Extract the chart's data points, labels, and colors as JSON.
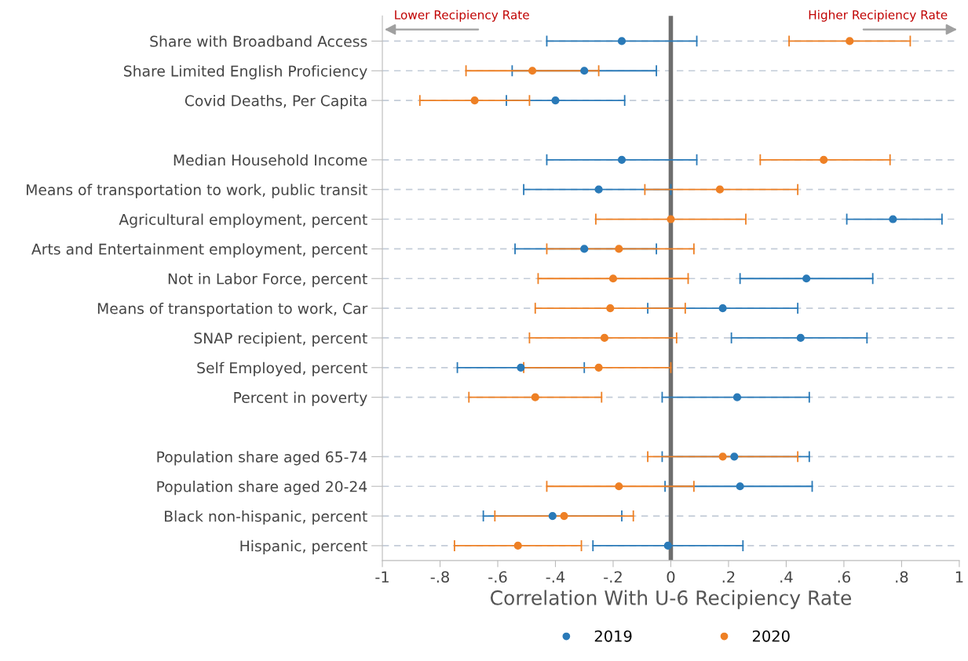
{
  "chart_data": {
    "type": "scatter",
    "orientation": "horizontal",
    "xlabel": "Correlation With U-6 Recipiency Rate",
    "categories": [
      "Share with Broadband Access",
      "Share Limited English Proficiency",
      "Covid Deaths, Per Capita",
      null,
      "Median Household Income",
      "Means of transportation to work, public transit",
      "Agricultural employment, percent",
      "Arts and Entertainment employment, percent",
      "Not in Labor Force, percent",
      "Means of transportation to work, Car",
      "SNAP recipient, percent",
      "Self Employed, percent",
      "Percent in poverty",
      null,
      "Population share aged 65-74",
      "Population share aged 20-24",
      "Black non-hispanic, percent",
      "Hispanic, percent"
    ],
    "series": [
      {
        "name": "2019",
        "color": "#2a7ab8",
        "values": [
          -0.17,
          -0.3,
          -0.4,
          null,
          -0.17,
          -0.25,
          0.77,
          -0.3,
          0.47,
          0.18,
          0.45,
          -0.52,
          0.23,
          null,
          0.22,
          0.24,
          -0.41,
          -0.01
        ],
        "errors": [
          [
            -0.43,
            0.09
          ],
          [
            -0.55,
            -0.05
          ],
          [
            -0.57,
            -0.16
          ],
          null,
          [
            -0.43,
            0.09
          ],
          [
            -0.51,
            0.0
          ],
          [
            0.61,
            0.94
          ],
          [
            -0.54,
            -0.05
          ],
          [
            0.24,
            0.7
          ],
          [
            -0.08,
            0.44
          ],
          [
            0.21,
            0.68
          ],
          [
            -0.74,
            -0.3
          ],
          [
            -0.03,
            0.48
          ],
          null,
          [
            -0.03,
            0.48
          ],
          [
            -0.02,
            0.49
          ],
          [
            -0.65,
            -0.17
          ],
          [
            -0.27,
            0.25
          ]
        ]
      },
      {
        "name": "2020",
        "color": "#ee8025",
        "values": [
          0.62,
          -0.48,
          -0.68,
          null,
          0.53,
          0.17,
          0.0,
          -0.18,
          -0.2,
          -0.21,
          -0.23,
          -0.25,
          -0.47,
          null,
          0.18,
          -0.18,
          -0.37,
          -0.53
        ],
        "errors": [
          [
            0.41,
            0.83
          ],
          [
            -0.71,
            -0.25
          ],
          [
            -0.87,
            -0.49
          ],
          null,
          [
            0.31,
            0.76
          ],
          [
            -0.09,
            0.44
          ],
          [
            -0.26,
            0.26
          ],
          [
            -0.43,
            0.08
          ],
          [
            -0.46,
            0.06
          ],
          [
            -0.47,
            0.05
          ],
          [
            -0.49,
            0.02
          ],
          [
            -0.51,
            0.0
          ],
          [
            -0.7,
            -0.24
          ],
          null,
          [
            -0.08,
            0.44
          ],
          [
            -0.43,
            0.08
          ],
          [
            -0.61,
            -0.13
          ],
          [
            -0.75,
            -0.31
          ]
        ]
      }
    ],
    "xlim": [
      -1,
      1
    ],
    "xticks": [
      -1,
      {
        "value": -0.8,
        "label": "-.8"
      },
      {
        "value": -0.6,
        "label": "-.6"
      },
      {
        "value": -0.4,
        "label": "-.4"
      },
      {
        "value": -0.2,
        "label": "-.2"
      },
      0,
      {
        "value": 0.2,
        "label": ".2"
      },
      {
        "value": 0.4,
        "label": ".4"
      },
      {
        "value": 0.6,
        "label": ".6"
      },
      {
        "value": 0.8,
        "label": ".8"
      },
      1
    ],
    "ref_lines": [
      {
        "axis": "x",
        "value": 0,
        "color": "#6e6e6e"
      }
    ],
    "annotations": [
      "Lower Recipiency Rate",
      "Higher Recipiency Rate"
    ],
    "grid": "y",
    "legend": "bottom",
    "marker": "circle"
  }
}
